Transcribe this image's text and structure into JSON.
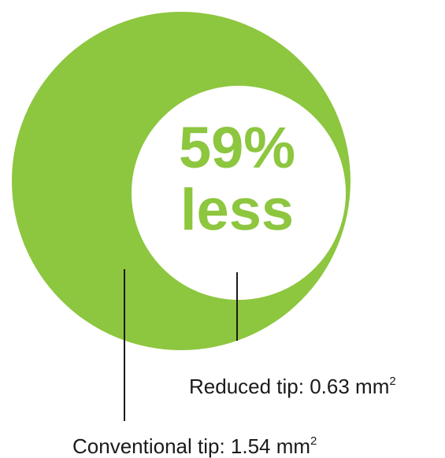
{
  "headline": {
    "value": "59%",
    "word": "less"
  },
  "labels": {
    "reduced": {
      "text": "Reduced tip: 0.63 mm",
      "superscript": "2"
    },
    "conventional": {
      "text": "Conventional tip: 1.54 mm",
      "superscript": "2"
    }
  },
  "colors": {
    "green": "#8dc63f",
    "text_dark": "#1a1a1a",
    "background": "#ffffff"
  }
}
